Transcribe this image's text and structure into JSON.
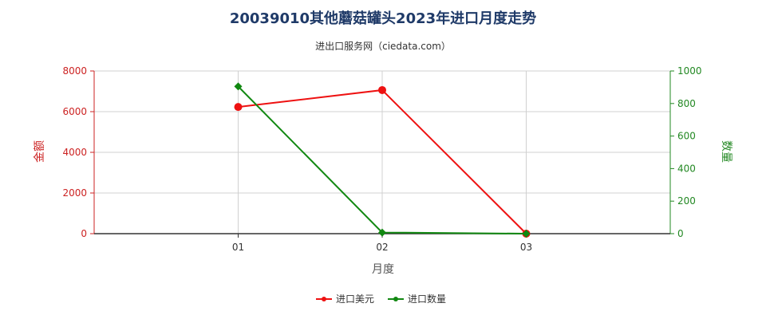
{
  "chart_data": {
    "type": "line",
    "title": "20039010其他蘑菇罐头2023年进口月度走势",
    "subtitle": "进出口服务网（ciedata.com）",
    "xlabel": "月度",
    "ylabel_left": "金额",
    "ylabel_right": "数量",
    "categories": [
      "01",
      "02",
      "03"
    ],
    "ylim_left": [
      0,
      8000
    ],
    "ylim_right": [
      0,
      1000
    ],
    "yticks_left": [
      0,
      2000,
      4000,
      6000,
      8000
    ],
    "yticks_right": [
      0,
      200,
      400,
      600,
      800,
      1000
    ],
    "grid": true,
    "legend_position": "bottom",
    "series": [
      {
        "name": "进口美元",
        "axis": "left",
        "color": "#ee1111",
        "marker": "circle",
        "values": [
          6230,
          7060,
          0
        ]
      },
      {
        "name": "进口数量",
        "axis": "right",
        "color": "#118811",
        "marker": "diamond",
        "values": [
          905,
          7,
          0
        ]
      }
    ],
    "left_axis_color": "#cc2222",
    "right_axis_color": "#228822",
    "title_color": "#1f3a68"
  }
}
